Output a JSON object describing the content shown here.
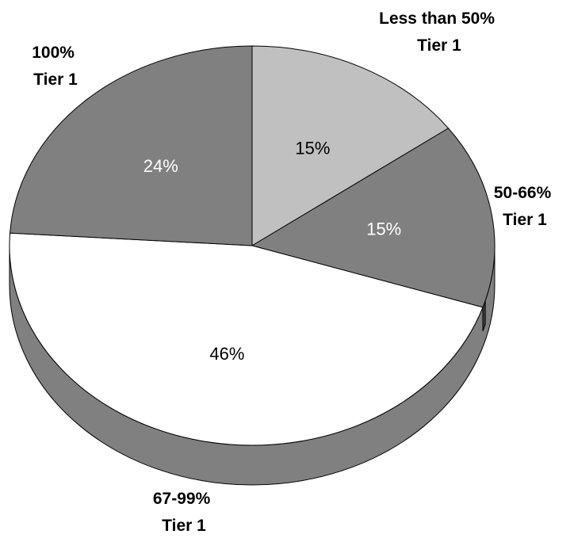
{
  "chart_data": {
    "type": "pie",
    "title": "",
    "slices": [
      {
        "label_lines": [
          "Less than 50%",
          "Tier 1"
        ],
        "value": 15,
        "value_label": "15%",
        "color": "#c0c0c0",
        "text_color": "#000000"
      },
      {
        "label_lines": [
          "50-66%",
          "Tier 1"
        ],
        "value": 15,
        "value_label": "15%",
        "color": "#808080",
        "text_color": "#ffffff"
      },
      {
        "label_lines": [
          "67-99%",
          "Tier 1"
        ],
        "value": 46,
        "value_label": "46%",
        "color": "#ffffff",
        "text_color": "#000000"
      },
      {
        "label_lines": [
          "100%",
          "Tier 1"
        ],
        "value": 24,
        "value_label": "24%",
        "color": "#808080",
        "text_color": "#ffffff"
      }
    ],
    "style": "3d-tilted",
    "side_color": "#808080",
    "legend": "none"
  }
}
